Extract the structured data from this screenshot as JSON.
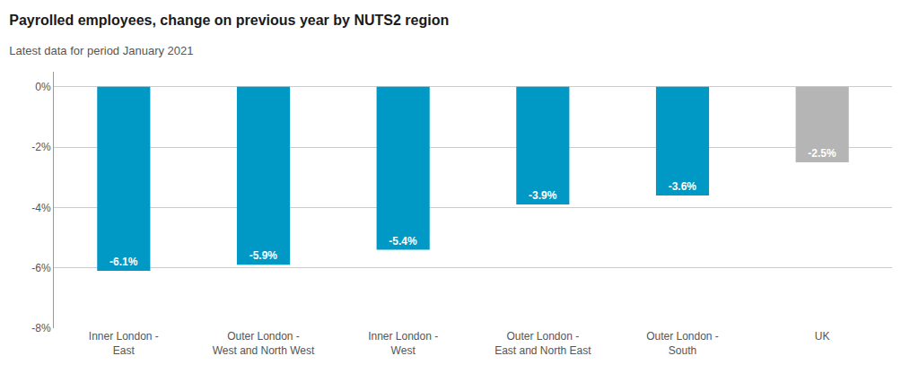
{
  "chart_data": {
    "type": "bar",
    "title": "Payrolled employees, change on previous year by NUTS2 region",
    "subtitle": "Latest data for period January 2021",
    "categories": [
      "Inner London -\nEast",
      "Outer London -\nWest and North West",
      "Inner London -\nWest",
      "Outer London -\nEast and North East",
      "Outer London -\nSouth",
      "UK"
    ],
    "values": [
      -6.1,
      -5.9,
      -5.4,
      -3.9,
      -3.6,
      -2.5
    ],
    "value_labels": [
      "-6.1%",
      "-5.9%",
      "-5.4%",
      "-3.9%",
      "-3.6%",
      "-2.5%"
    ],
    "data_labels": true,
    "colors": [
      "#0099C6",
      "#0099C6",
      "#0099C6",
      "#0099C6",
      "#0099C6",
      "#B5B5B5"
    ],
    "ylim": [
      -8,
      0.5
    ],
    "yticks": [
      {
        "value": 0,
        "label": "0%"
      },
      {
        "value": -2,
        "label": "-2%"
      },
      {
        "value": -4,
        "label": "-4%"
      },
      {
        "value": -6,
        "label": "-6%"
      },
      {
        "value": -8,
        "label": "-8%"
      }
    ],
    "grid": true
  }
}
